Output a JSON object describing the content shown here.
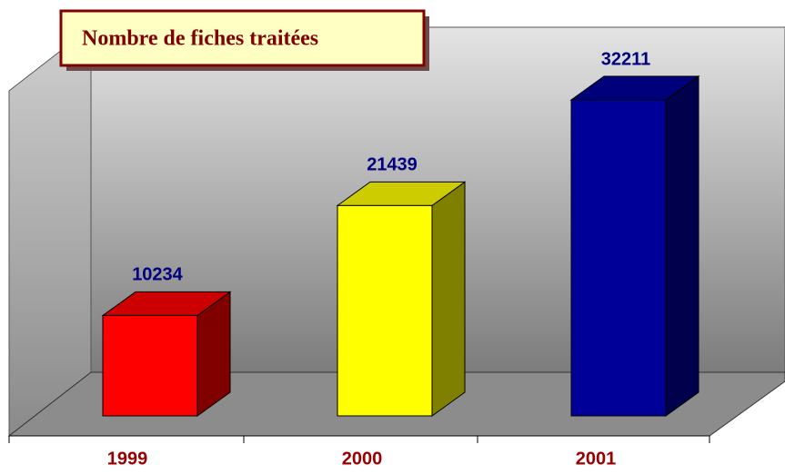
{
  "chart_data": {
    "type": "bar3d",
    "title": "Nombre de fiches traitées",
    "categories": [
      "1999",
      "2000",
      "2001"
    ],
    "values": [
      10234,
      21439,
      32211
    ],
    "colors": [
      "#ff0000",
      "#ffff00",
      "#000099"
    ]
  }
}
